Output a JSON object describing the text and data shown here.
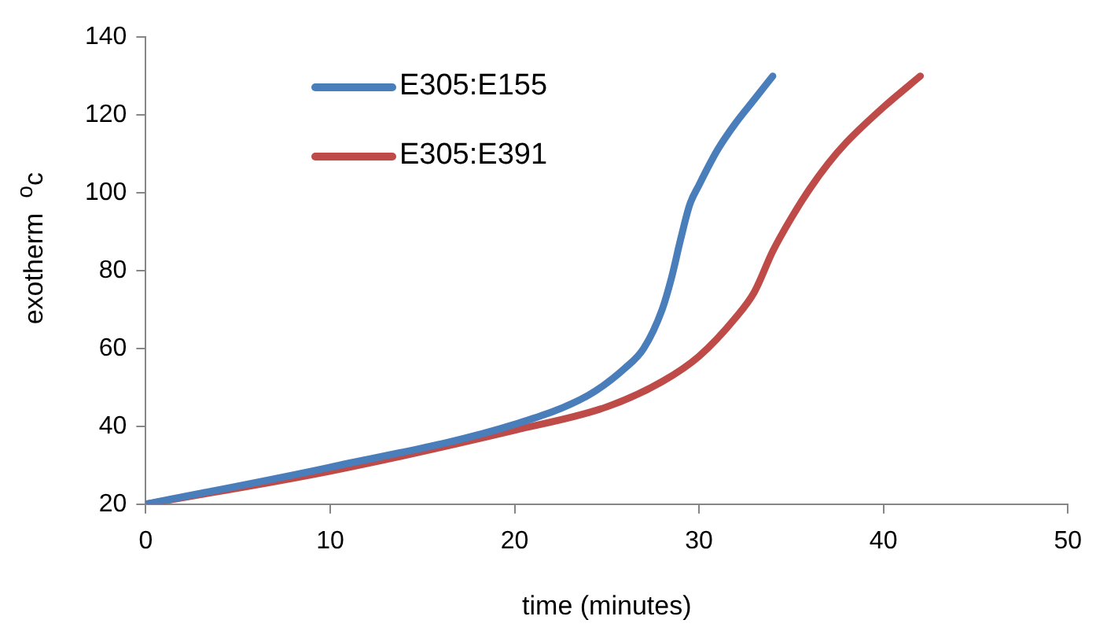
{
  "chart_data": {
    "type": "line",
    "xlabel": "time (minutes)",
    "ylabel": "exotherm  $^{o}$c",
    "x": [
      0,
      10,
      20,
      24,
      26,
      27,
      28,
      28.5,
      29,
      29.5,
      30,
      31,
      32,
      33,
      34
    ],
    "series": [
      {
        "name": "E305:E155",
        "color": "#4a7ebb",
        "values": [
          20,
          29.5,
          40.5,
          48,
          55,
          60,
          70,
          78,
          88,
          97,
          102,
          111,
          118,
          124,
          130
        ]
      },
      {
        "name": "E305:E391",
        "color": "#be4b48",
        "x": [
          0,
          10,
          20,
          25,
          28,
          30,
          32,
          33,
          34,
          35,
          36,
          37,
          38,
          40,
          42
        ],
        "values": [
          20,
          28.5,
          39,
          45,
          51.5,
          58,
          68,
          74.5,
          85,
          93.5,
          101,
          107.5,
          113,
          122,
          130
        ]
      }
    ],
    "xlim": [
      0,
      50
    ],
    "xticks": [
      0,
      10,
      20,
      30,
      40,
      50
    ],
    "ylim": [
      20,
      140
    ],
    "yticks": [
      20,
      40,
      60,
      80,
      100,
      120,
      140
    ],
    "grid": false,
    "legend": "top left",
    "marker": "none",
    "line_style": "solid"
  }
}
